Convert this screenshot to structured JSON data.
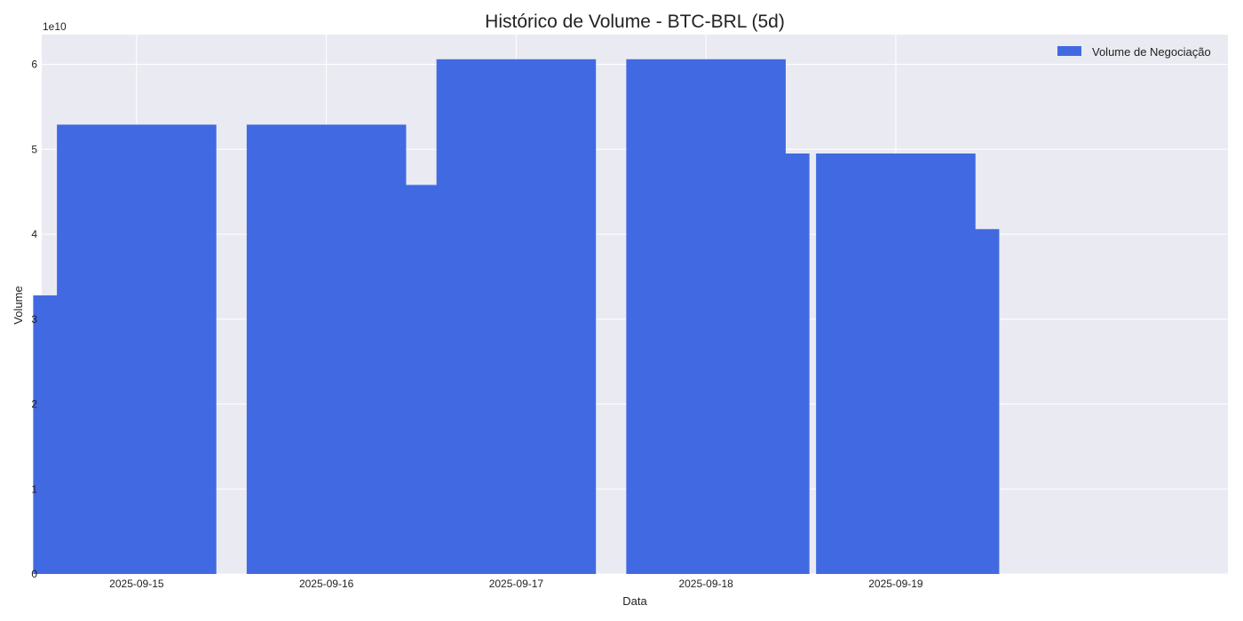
{
  "chart_data": {
    "type": "bar",
    "title": "Histórico de Volume - BTC-BRL (5d)",
    "xlabel": "Data",
    "ylabel": "Volume",
    "y_offset_label": "1e10",
    "y_scale": 10000000000,
    "ylim": [
      0,
      63500000000
    ],
    "yticks": [
      0,
      1,
      2,
      3,
      4,
      5,
      6
    ],
    "xticks": [
      "2025-09-15",
      "2025-09-16",
      "2025-09-17",
      "2025-09-18",
      "2025-09-19"
    ],
    "xlim": [
      "2025-09-14 12:00",
      "2025-09-20 18:00"
    ],
    "grid": true,
    "legend": {
      "position": "top-right",
      "entries": [
        "Volume de Negociação"
      ]
    },
    "series": [
      {
        "name": "Volume de Negociação",
        "color": "#4169E1",
        "points": [
          {
            "x": "2025-09-14 21:00",
            "value": 32800000000
          },
          {
            "x": "2025-09-15 00:00",
            "value": 52900000000
          },
          {
            "x": "2025-09-16 00:00",
            "value": 52900000000
          },
          {
            "x": "2025-09-16 03:00",
            "value": 45800000000
          },
          {
            "x": "2025-09-16 21:00",
            "value": 45800000000
          },
          {
            "x": "2025-09-17 00:00",
            "value": 60600000000
          },
          {
            "x": "2025-09-18 00:00",
            "value": 60600000000
          },
          {
            "x": "2025-09-18 03:00",
            "value": 49500000000
          },
          {
            "x": "2025-09-19 00:00",
            "value": 49500000000
          },
          {
            "x": "2025-09-19 03:00",
            "value": 40600000000
          }
        ]
      }
    ]
  }
}
